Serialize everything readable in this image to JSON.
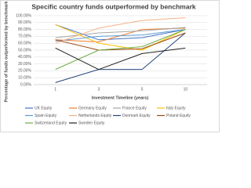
{
  "chart_data": {
    "type": "line",
    "title": "Specific country funds outperformed by benchmark",
    "x_label": "Investment Timeline (years)",
    "y_label": "Percentage of funds outperformed by benchmark",
    "categories": [
      "1",
      "3",
      "5",
      "10"
    ],
    "series": [
      {
        "name": "UK Equity",
        "color": "#4472c4",
        "values": [
          87,
          65,
          68,
          80
        ]
      },
      {
        "name": "Germany Equity",
        "color": "#ed7d31",
        "values": [
          65,
          62,
          80,
          82
        ]
      },
      {
        "name": "France Equity",
        "color": "#a5a5a5",
        "values": [
          68,
          75,
          78,
          83
        ]
      },
      {
        "name": "Italy Equity",
        "color": "#ffc000",
        "values": [
          87,
          60,
          50,
          80
        ]
      },
      {
        "name": "Spain Equity",
        "color": "#5b9bd5",
        "values": [
          63,
          70,
          72,
          80
        ]
      },
      {
        "name": "Netherlands Equity",
        "color": "#f4b183",
        "values": [
          60,
          82,
          93,
          97
        ]
      },
      {
        "name": "Denmark Equity",
        "color": "#264478",
        "values": [
          3,
          22,
          22,
          75
        ]
      },
      {
        "name": "Poland Equity",
        "color": "#9e480e",
        "values": [
          65,
          50,
          52,
          75
        ]
      },
      {
        "name": "Switzerland Equity",
        "color": "#70ad47",
        "values": [
          22,
          50,
          55,
          80
        ]
      },
      {
        "name": "Sweden Equity",
        "color": "#222222",
        "values": [
          53,
          22,
          45,
          53
        ]
      }
    ],
    "ylim": [
      0,
      100
    ],
    "yticks": [
      {
        "value": 0,
        "label": "0.00%"
      },
      {
        "value": 10,
        "label": "10.00%"
      },
      {
        "value": 20,
        "label": "20.00%"
      },
      {
        "value": 30,
        "label": "30.00%"
      },
      {
        "value": 40,
        "label": "40.00%"
      },
      {
        "value": 50,
        "label": "50.00%"
      },
      {
        "value": 60,
        "label": "60.00%"
      },
      {
        "value": 70,
        "label": "70.00%"
      },
      {
        "value": 80,
        "label": "80.00%"
      },
      {
        "value": 90,
        "label": "90.00%"
      },
      {
        "value": 100,
        "label": "100.00%"
      }
    ],
    "grid": true
  }
}
